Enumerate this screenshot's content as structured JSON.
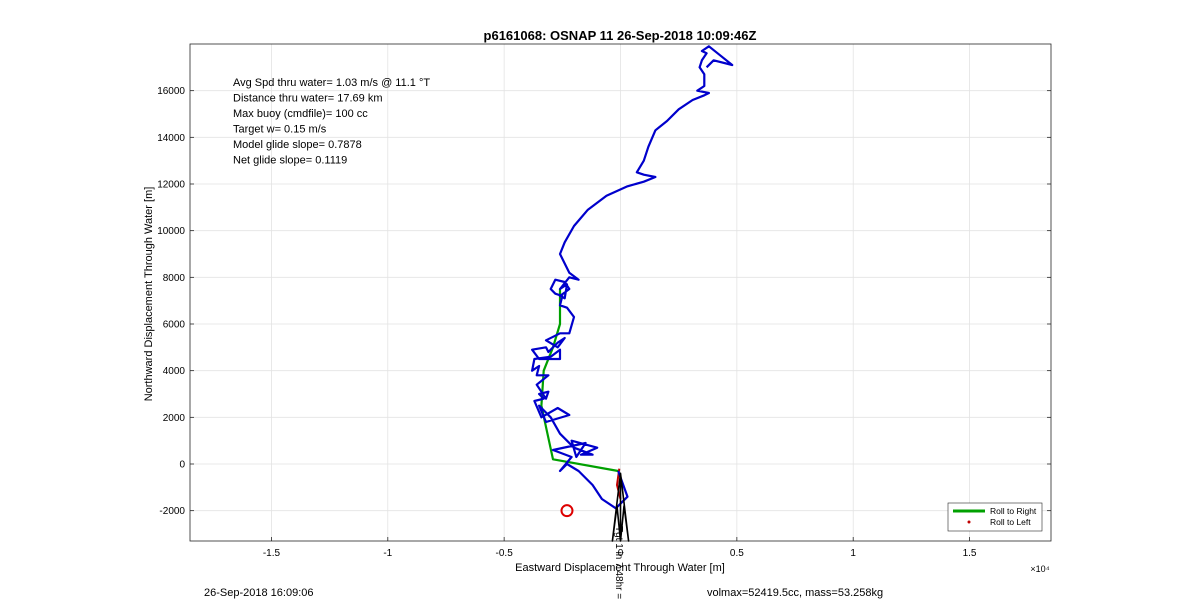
{
  "chart_data": {
    "type": "line",
    "title": "p6161068: OSNAP 11 26-Sep-2018 10:09:46Z",
    "xlabel": "Eastward Displacement Through Water [m]",
    "ylabel": "Northward Displacement Through Water [m]",
    "x_exponent_label": "×10⁴",
    "xlim": [
      -18500,
      18500
    ],
    "ylim": [
      -3300,
      18000
    ],
    "x_ticks": [
      -15000,
      -10000,
      -5000,
      0,
      5000,
      10000,
      15000
    ],
    "x_tick_labels": [
      "-1.5",
      "-1",
      "-0.5",
      "0",
      "0.5",
      "1",
      "1.5"
    ],
    "y_ticks": [
      -2000,
      0,
      2000,
      4000,
      6000,
      8000,
      10000,
      12000,
      14000,
      16000
    ],
    "y_tick_labels": [
      "-2000",
      "0",
      "2000",
      "4000",
      "6000",
      "8000",
      "10000",
      "12000",
      "14000",
      "16000"
    ],
    "grid": true,
    "legend_position": "bottom-right",
    "annotations": [
      "Avg Spd thru water=  1.03 m/s @  11.1 °T",
      "Distance thru water= 17.69 km",
      "Max buoy (cmdfile)= 100 cc",
      "Target w= 0.15 m/s",
      "Model glide slope= 0.7878",
      "Net glide slope= 0.1119"
    ],
    "series": [
      {
        "name": "Roll to Right",
        "color": "#00a000",
        "points": [
          [
            -100,
            -300
          ],
          [
            -2900,
            200
          ],
          [
            -3400,
            2500
          ],
          [
            -3300,
            4000
          ],
          [
            -2900,
            5000
          ],
          [
            -2600,
            6000
          ],
          [
            -2600,
            7500
          ]
        ]
      },
      {
        "name": "Roll to Left",
        "color": "#c00000",
        "points": [
          [
            -50,
            -200
          ],
          [
            -150,
            -900
          ],
          [
            0,
            -1500
          ]
        ]
      },
      {
        "name": "",
        "color": "#0000cc",
        "points": [
          [
            -100,
            -300
          ],
          [
            300,
            -1400
          ],
          [
            -200,
            -1900
          ],
          [
            -800,
            -1500
          ],
          [
            -1200,
            -900
          ],
          [
            -1800,
            -300
          ],
          [
            -2300,
            0
          ],
          [
            -2600,
            -300
          ],
          [
            -2100,
            300
          ],
          [
            -2900,
            600
          ],
          [
            -1500,
            900
          ],
          [
            -1900,
            300
          ],
          [
            -2100,
            1000
          ],
          [
            -1000,
            700
          ],
          [
            -1700,
            400
          ],
          [
            -1200,
            400
          ],
          [
            -2000,
            700
          ],
          [
            -2600,
            1300
          ],
          [
            -3000,
            2000
          ],
          [
            -3500,
            2500
          ],
          [
            -3200,
            1800
          ],
          [
            -2200,
            2100
          ],
          [
            -2700,
            2400
          ],
          [
            -3400,
            2000
          ],
          [
            -3700,
            2700
          ],
          [
            -3300,
            2800
          ],
          [
            -3500,
            3000
          ],
          [
            -3100,
            3100
          ],
          [
            -3200,
            2800
          ],
          [
            -3600,
            3400
          ],
          [
            -3100,
            3800
          ],
          [
            -3600,
            3800
          ],
          [
            -3500,
            4200
          ],
          [
            -3800,
            4000
          ],
          [
            -3700,
            4500
          ],
          [
            -3000,
            4600
          ],
          [
            -2600,
            4900
          ],
          [
            -2600,
            4500
          ],
          [
            -3500,
            4500
          ],
          [
            -3800,
            4900
          ],
          [
            -3200,
            5000
          ],
          [
            -3100,
            4800
          ],
          [
            -2800,
            5100
          ],
          [
            -2700,
            5200
          ],
          [
            -2400,
            5400
          ],
          [
            -2700,
            5000
          ],
          [
            -3200,
            5300
          ],
          [
            -2800,
            5500
          ],
          [
            -2600,
            5600
          ],
          [
            -2200,
            5600
          ],
          [
            -2000,
            6300
          ],
          [
            -2300,
            6700
          ],
          [
            -2600,
            6800
          ],
          [
            -2500,
            7200
          ],
          [
            -2800,
            7300
          ],
          [
            -3000,
            7500
          ],
          [
            -2800,
            7900
          ],
          [
            -2400,
            7800
          ],
          [
            -2200,
            7500
          ],
          [
            -2600,
            7200
          ],
          [
            -2400,
            7100
          ],
          [
            -2300,
            7700
          ],
          [
            -2600,
            7500
          ],
          [
            -2200,
            8000
          ],
          [
            -1800,
            7900
          ],
          [
            -2200,
            8200
          ],
          [
            -2600,
            9000
          ],
          [
            -2400,
            9500
          ],
          [
            -2000,
            10200
          ],
          [
            -1400,
            10900
          ],
          [
            -600,
            11500
          ],
          [
            300,
            11900
          ],
          [
            1000,
            12100
          ],
          [
            1500,
            12300
          ],
          [
            1000,
            12400
          ],
          [
            700,
            12500
          ],
          [
            1000,
            13000
          ],
          [
            1200,
            13600
          ],
          [
            1500,
            14300
          ],
          [
            2000,
            14700
          ],
          [
            2500,
            15200
          ],
          [
            3100,
            15600
          ],
          [
            3600,
            15800
          ],
          [
            3800,
            15900
          ],
          [
            3300,
            16000
          ],
          [
            3600,
            16200
          ],
          [
            3600,
            16700
          ],
          [
            3400,
            17000
          ],
          [
            3500,
            17300
          ],
          [
            3700,
            17600
          ],
          [
            3500,
            17700
          ],
          [
            3800,
            17900
          ],
          [
            4300,
            17500
          ],
          [
            4800,
            17100
          ],
          [
            4000,
            17300
          ],
          [
            3700,
            17000
          ]
        ]
      },
      {
        "name": "",
        "color": "#000000",
        "points": [
          [
            0,
            -400
          ],
          [
            -350,
            -3300
          ],
          [
            -150,
            -1800
          ],
          [
            0,
            -3300
          ],
          [
            150,
            -1800
          ],
          [
            350,
            -3300
          ],
          [
            0,
            -400
          ],
          [
            0,
            -3300
          ]
        ]
      }
    ],
    "target_marker": {
      "x": -2300,
      "y": -2000,
      "color": "#dd0000"
    },
    "bottom_label": "Tgt 1 in 7.48hr ="
  },
  "footer": {
    "left": "26-Sep-2018 16:09:06",
    "right": "volmax=52419.5cc, mass=53.258kg"
  }
}
